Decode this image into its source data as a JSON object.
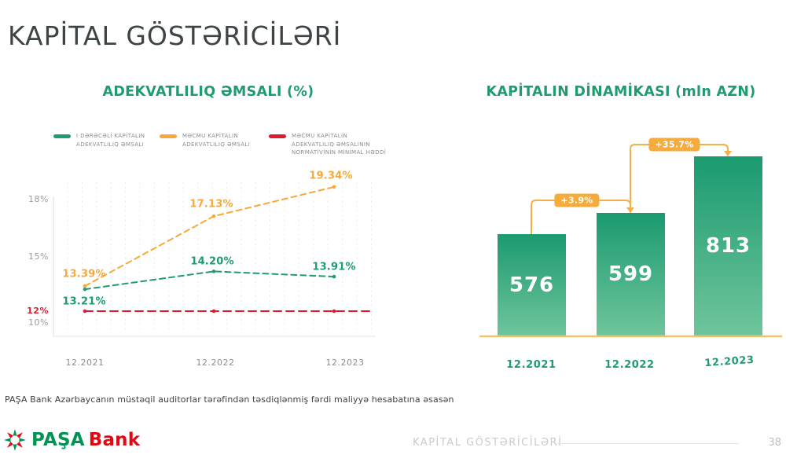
{
  "slide": {
    "title": "KAPİTAL GÖSTƏRİCİLƏRİ",
    "footnote": "PAŞA Bank Azərbaycanın müstəqil auditorlar tərəfindən təsdiqlənmiş fərdi maliyyə hesabatına əsasən",
    "footer": {
      "logo_primary": "PAŞA",
      "logo_secondary": "Bank",
      "section_label": "KAPİTAL GÖSTƏRİCİLƏRİ",
      "page_number": "38"
    },
    "colors": {
      "green": "#1E9C6E",
      "orange": "#F5A93D",
      "red": "#DE1B2E",
      "badge_bg": "#F5AC3D",
      "bracket": "#F3B04A",
      "baseline": "#F0C468",
      "bar_gradient_top": "#1B9A70",
      "bar_gradient_bottom": "#6FC59B",
      "logo_green": "#009353",
      "logo_red": "#E30613",
      "title_text": "#3E4446"
    }
  },
  "chart_data": [
    {
      "type": "line",
      "title": "ADEKVATLILIQ ƏMSALI (%)",
      "categories": [
        "12.2021",
        "12.2022",
        "12.2023"
      ],
      "series": [
        {
          "name": "I DƏRƏCƏLİ KAPİTALIN ADEKVATLILIQ ƏMSALI",
          "color": "#1E9C6E",
          "style": "dashed",
          "values": [
            13.21,
            14.2,
            13.91
          ],
          "labels": [
            "13.21%",
            "14.20%",
            "13.91%"
          ]
        },
        {
          "name": "MƏCMU KAPİTALIN ADEKVATLILIQ ƏMSALI",
          "color": "#F5A93D",
          "style": "dashed",
          "values": [
            13.39,
            17.13,
            19.34
          ],
          "labels": [
            "13.39%",
            "17.13%",
            "19.34%"
          ]
        },
        {
          "name": "MƏCMU KAPİTALIN ADEKVATLILIQ ƏMSALININ NORMATİVİNİN MİNİMAL HƏDDİ",
          "color": "#DE1B2E",
          "style": "dashed",
          "values": [
            12,
            12,
            12
          ],
          "labels": []
        }
      ],
      "legend": [
        {
          "lines": [
            "I DƏRƏCƏLİ KAPİTALIN",
            "ADEKVATLILIQ ƏMSALI"
          ]
        },
        {
          "lines": [
            "MƏCMU KAPİTALIN",
            "ADEKVATLILIQ ƏMSALI"
          ]
        },
        {
          "lines": [
            "MƏCMU KAPİTALIN",
            "ADEKVATLILIQ ƏMSALININ",
            "NORMATİVİNİN MİNİMAL HƏDDİ"
          ]
        }
      ],
      "yticks": [
        {
          "label": "18%",
          "value": 18,
          "emphasis": false
        },
        {
          "label": "15%",
          "value": 15,
          "emphasis": false
        },
        {
          "label": "12%",
          "value": 12,
          "emphasis": true
        },
        {
          "label": "10%",
          "value": 10,
          "emphasis": false
        }
      ],
      "ylim": [
        10,
        20
      ],
      "grid": "dotted-vertical",
      "legend_position": "top"
    },
    {
      "type": "bar",
      "title": "KAPİTALIN DİNAMİKASI (mln AZN)",
      "categories": [
        "12.2021",
        "12.2022",
        "12.2023"
      ],
      "values": [
        576,
        599,
        813
      ],
      "unit": "mln AZN",
      "deltas": [
        {
          "label": "+3.9%",
          "from_index": 0,
          "to_index": 1
        },
        {
          "label": "+35.7%",
          "from_index": 1,
          "to_index": 2
        }
      ],
      "grid": "off",
      "legend_position": "none"
    }
  ]
}
